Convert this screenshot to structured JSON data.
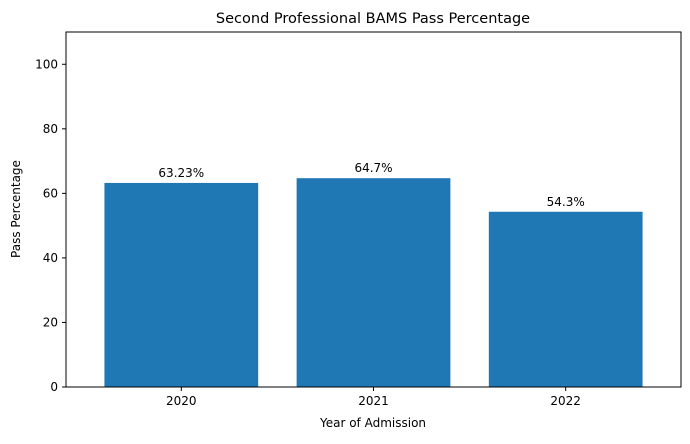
{
  "chart_data": {
    "type": "bar",
    "title": "Second Professional BAMS Pass Percentage",
    "xlabel": "Year of Admission",
    "ylabel": "Pass Percentage",
    "categories": [
      "2020",
      "2021",
      "2022"
    ],
    "values": [
      63.23,
      64.7,
      54.3
    ],
    "value_labels": [
      "63.23%",
      "64.7%",
      "54.3%"
    ],
    "ylim": [
      0,
      110
    ],
    "yticks": [
      0,
      20,
      40,
      60,
      80,
      100
    ],
    "bar_color": "#1f77b4",
    "grid": false,
    "legend": "none"
  }
}
